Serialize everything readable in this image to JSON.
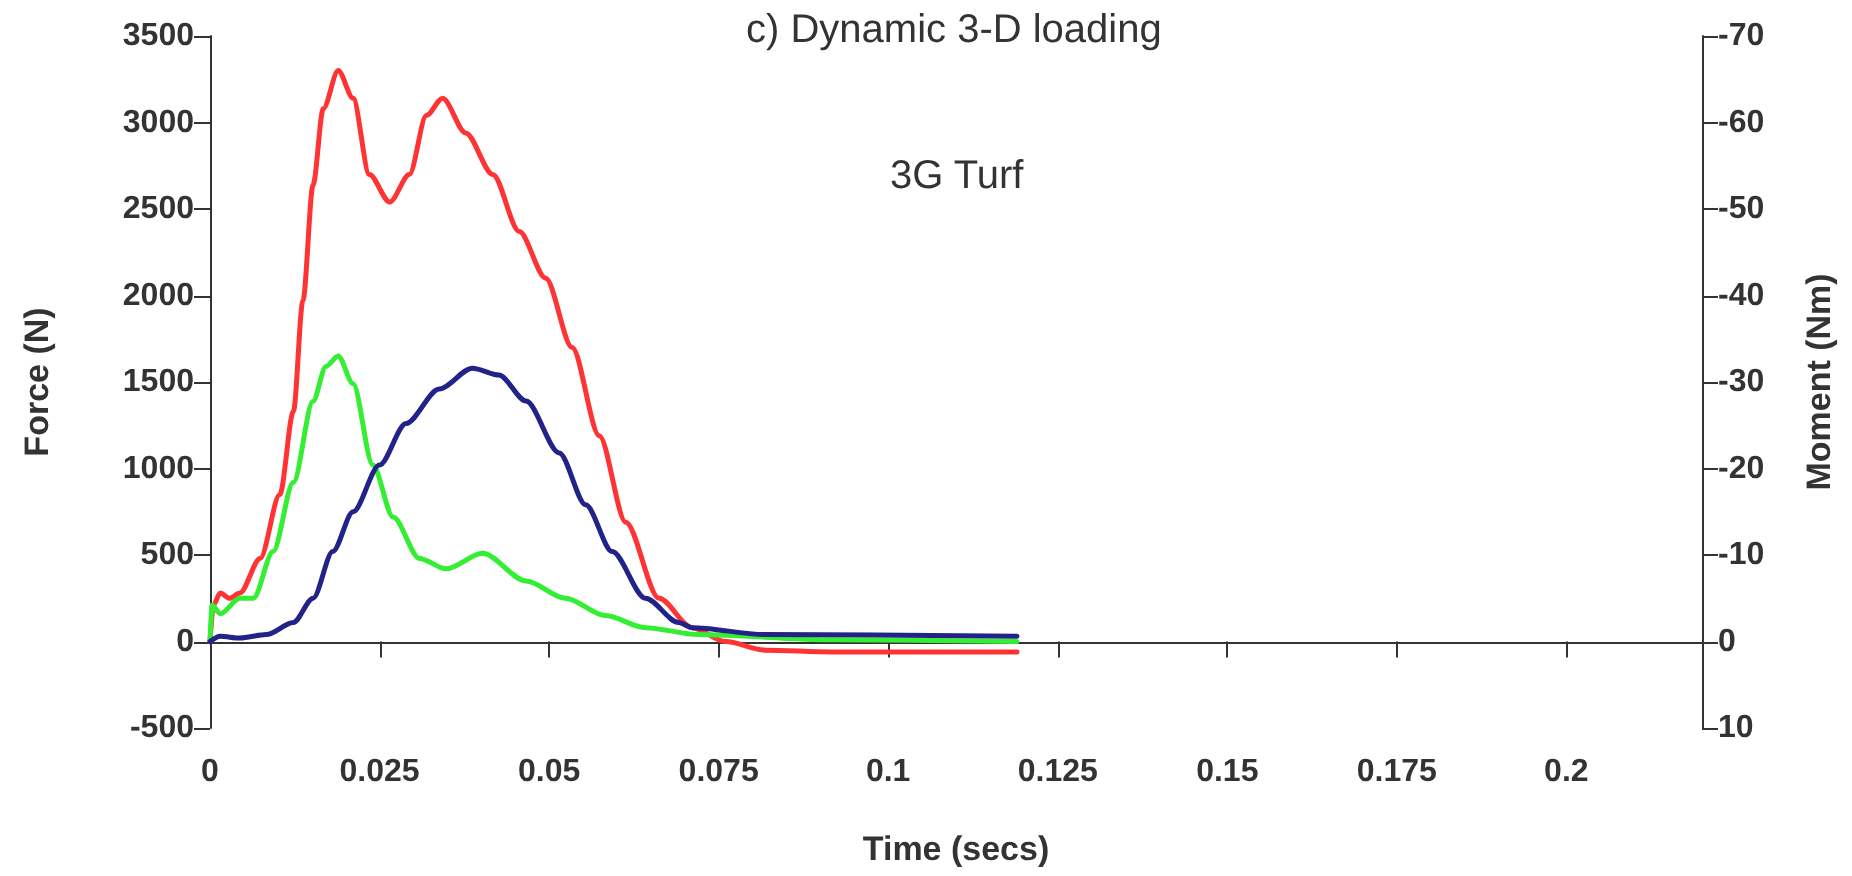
{
  "chart_data": {
    "type": "line",
    "title": "c) Dynamic 3-D loading",
    "xlabel": "Time (secs)",
    "ylabel": "Force (N)",
    "y2label": "Moment (Nm)",
    "annotations": [
      "3G Turf"
    ],
    "xlim": [
      0,
      0.22
    ],
    "xticks": [
      0,
      0.025,
      0.05,
      0.075,
      0.1,
      0.125,
      0.15,
      0.175,
      0.2
    ],
    "ylim": [
      -500,
      3500
    ],
    "yticks": [
      -500,
      0,
      500,
      1000,
      1500,
      2000,
      2500,
      3000,
      3500
    ],
    "y2lim": [
      10,
      -70
    ],
    "y2ticks": [
      10,
      0,
      -10,
      -20,
      -30,
      -40,
      -50,
      -60,
      -70
    ],
    "marker": "none",
    "line_style": "solid",
    "series": [
      {
        "color": "#ff3333",
        "x": [
          0,
          0.0005,
          0.0015,
          0.0029,
          0.0044,
          0.0074,
          0.0103,
          0.0123,
          0.0137,
          0.0152,
          0.0167,
          0.0189,
          0.0211,
          0.0235,
          0.0265,
          0.0294,
          0.0319,
          0.0343,
          0.0377,
          0.0417,
          0.0456,
          0.0495,
          0.0534,
          0.0574,
          0.0613,
          0.0662,
          0.0711,
          0.076,
          0.0819,
          0.0917,
          0.119
        ],
        "values": [
          0,
          210,
          280,
          250,
          280,
          480,
          850,
          1330,
          1970,
          2640,
          3080,
          3300,
          3140,
          2700,
          2540,
          2700,
          3040,
          3140,
          2940,
          2700,
          2370,
          2100,
          1700,
          1190,
          690,
          250,
          80,
          0,
          -50,
          -60,
          -60
        ]
      },
      {
        "color": "#33ee33",
        "x": [
          0,
          0.0003,
          0.0015,
          0.0044,
          0.0064,
          0.0093,
          0.0123,
          0.0152,
          0.0171,
          0.0189,
          0.0211,
          0.024,
          0.027,
          0.0309,
          0.0348,
          0.0402,
          0.0466,
          0.0524,
          0.0583,
          0.0642,
          0.072,
          0.0917,
          0.119
        ],
        "values": [
          0,
          210,
          160,
          250,
          250,
          520,
          920,
          1390,
          1590,
          1650,
          1490,
          1020,
          720,
          480,
          420,
          510,
          350,
          250,
          150,
          80,
          40,
          10,
          0
        ]
      },
      {
        "color": "#222288",
        "x": [
          0,
          0.0015,
          0.0044,
          0.0083,
          0.0123,
          0.0152,
          0.0181,
          0.0211,
          0.025,
          0.0289,
          0.0338,
          0.0387,
          0.0426,
          0.0466,
          0.0515,
          0.0554,
          0.0593,
          0.0642,
          0.0691,
          0.0711,
          0.0819,
          0.119
        ],
        "values": [
          0,
          30,
          20,
          40,
          110,
          250,
          520,
          750,
          1020,
          1260,
          1460,
          1580,
          1540,
          1390,
          1090,
          790,
          520,
          250,
          110,
          80,
          40,
          30
        ]
      }
    ]
  }
}
